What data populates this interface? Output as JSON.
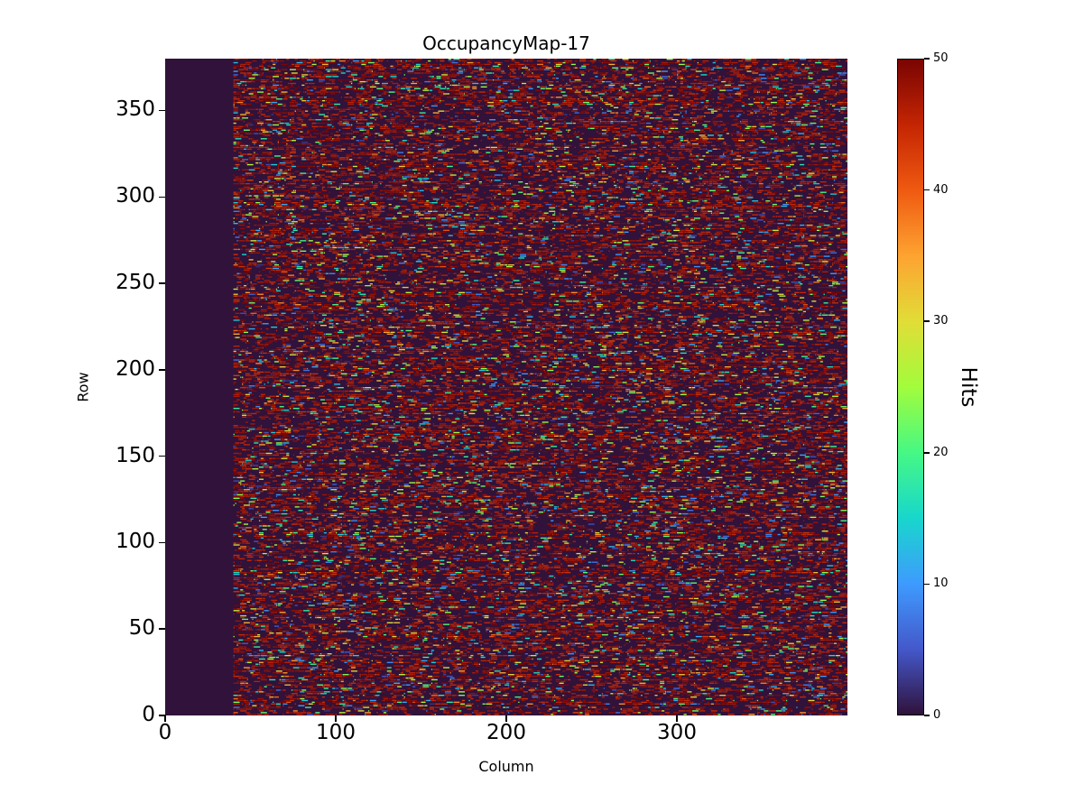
{
  "figure": {
    "background_color": "#ffffff",
    "text_color": "#000000"
  },
  "chart_data": {
    "type": "heatmap",
    "title": "OccupancyMap-17",
    "xlabel": "Column",
    "ylabel": "Row",
    "x_range": [
      0,
      400
    ],
    "y_range": [
      0,
      380
    ],
    "x_ticks": [
      0,
      100,
      200,
      300
    ],
    "y_ticks": [
      0,
      50,
      100,
      150,
      200,
      250,
      300,
      350
    ],
    "grid": false,
    "colorbar": {
      "label": "Hits",
      "min": 0,
      "max": 50,
      "ticks": [
        0,
        10,
        20,
        30,
        40,
        50
      ],
      "position": "right"
    },
    "colormap": {
      "name": "turbo",
      "stops": [
        [
          0.0,
          "#30123b"
        ],
        [
          0.1,
          "#4458cb"
        ],
        [
          0.2,
          "#3e9bfe"
        ],
        [
          0.3,
          "#18d7cc"
        ],
        [
          0.4,
          "#46f884"
        ],
        [
          0.5,
          "#a2fc3c"
        ],
        [
          0.6,
          "#e1dd37"
        ],
        [
          0.7,
          "#fea331"
        ],
        [
          0.8,
          "#ef5a11"
        ],
        [
          0.9,
          "#c42503"
        ],
        [
          1.0,
          "#7a0403"
        ]
      ]
    },
    "data_pattern": {
      "description": "Columns 0-39 contain zero hits (uniform dark background). Columns 40-399 contain dense horizontal-dash speckle noise: roughly half of cells are zero, most non-zero cells saturate near the 50-hit maximum (dark red), with scattered intermediate values (2-44 hits) appearing as blue/cyan/green/yellow/orange dots.",
      "rows": 380,
      "cols": 400,
      "empty_column_range": [
        0,
        40
      ],
      "active_column_range": [
        40,
        400
      ],
      "seed": 17,
      "p_zero": 0.48,
      "p_high_given_nonzero": 0.75,
      "high_value_range": [
        44,
        50
      ],
      "mid_value_range": [
        2,
        44
      ],
      "dash_length_cells": [
        1,
        4
      ]
    }
  }
}
